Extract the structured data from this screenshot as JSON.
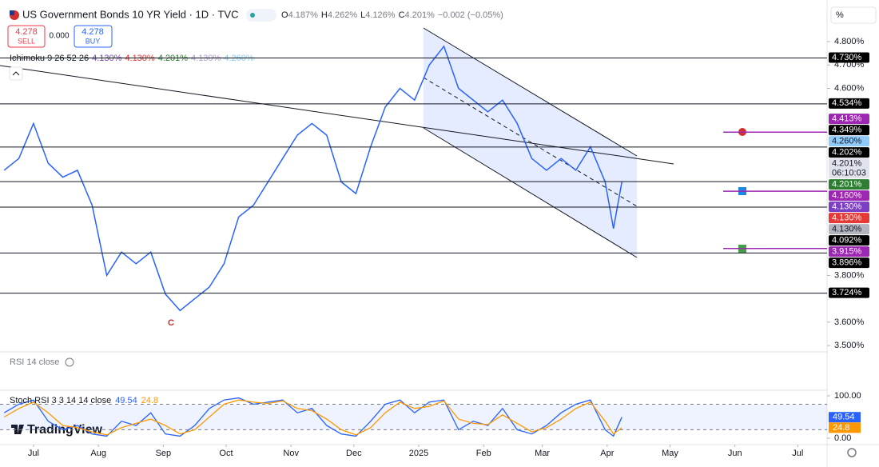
{
  "header": {
    "ohlc": [
      {
        "key": "O",
        "value": "4.187%"
      },
      {
        "key": "H",
        "value": "4.262%"
      },
      {
        "key": "L",
        "value": "4.126%"
      },
      {
        "key": "C",
        "value": "4.201%"
      }
    ],
    "change": "−0.002 (−0.05%)"
  },
  "trade": {
    "sell_price": "4.278",
    "sell": "SELL",
    "spread": "0.000",
    "buy_price": "4.278",
    "buy": "BUY"
  },
  "indicator": {
    "name": "Ichimoku 9 26 52 26",
    "values": [
      {
        "text": "4.130%",
        "color": "#7b3fc4"
      },
      {
        "text": "4.130%",
        "color": "#e53935"
      },
      {
        "text": "4.201%",
        "color": "#2e7d32"
      },
      {
        "text": "4.130%",
        "color": "#b39ddb"
      },
      {
        "text": "4.260%",
        "color": "#90caf9"
      }
    ]
  },
  "axis_unit": "%",
  "annotation": "C",
  "rsi_title": "RSI 14 close",
  "logo": "TradingView",
  "price_labels": [
    {
      "value": 4.73,
      "label": "4.730%",
      "bg": "#000000",
      "fg": "#ffffff",
      "line": "full"
    },
    {
      "value": 4.534,
      "label": "4.534%",
      "bg": "#000000",
      "fg": "#ffffff",
      "line": "full"
    },
    {
      "value": 4.413,
      "label": "4.413%",
      "bg": "#9c27b0",
      "fg": "#ffffff",
      "line": "short"
    },
    {
      "value": 4.349,
      "label": "4.349%",
      "bg": "#000000",
      "fg": "#ffffff",
      "line": "full"
    },
    {
      "value": 4.26,
      "label": "4.260%",
      "bg": "#90caf9",
      "fg": "#131722"
    },
    {
      "value": 4.202,
      "label": "4.202%",
      "bg": "#000000",
      "fg": "#ffffff"
    },
    {
      "value": 4.201,
      "label": "4.201%",
      "countdown": "06:10:03",
      "bg": "#e0e3eb",
      "fg": "#131722"
    },
    {
      "value": 4.201,
      "label": "4.201%",
      "bg": "#2e7d32",
      "fg": "#ffffff",
      "line": "full"
    },
    {
      "value": 4.16,
      "label": "4.160%",
      "bg": "#9c27b0",
      "fg": "#ffffff",
      "line": "short"
    },
    {
      "value": 4.13,
      "label": "4.130%",
      "bg": "#7b3fc4",
      "fg": "#ffffff"
    },
    {
      "value": 4.13,
      "label": "4.130%",
      "bg": "#e53935",
      "fg": "#ffffff"
    },
    {
      "value": 4.13,
      "label": "4.130%",
      "bg": "#b2b5be",
      "fg": "#131722"
    },
    {
      "value": 4.092,
      "label": "4.092%",
      "bg": "#000000",
      "fg": "#ffffff",
      "line": "full"
    },
    {
      "value": 3.915,
      "label": "3.915%",
      "bg": "#9c27b0",
      "fg": "#ffffff",
      "line": "short"
    },
    {
      "value": 3.896,
      "label": "3.896%",
      "bg": "#000000",
      "fg": "#ffffff",
      "line": "full"
    },
    {
      "value": 3.724,
      "label": "3.724%",
      "bg": "#000000",
      "fg": "#ffffff",
      "line": "full"
    }
  ],
  "chart_data": [
    {
      "type": "line",
      "title": "US Government Bonds 10 YR Yield · 1D · TVC",
      "color": "#2962ff",
      "x": [
        "2024-06-17",
        "2024-06-24",
        "2024-07-01",
        "2024-07-08",
        "2024-07-15",
        "2024-07-22",
        "2024-07-29",
        "2024-08-05",
        "2024-08-12",
        "2024-08-19",
        "2024-08-26",
        "2024-09-02",
        "2024-09-09",
        "2024-09-16",
        "2024-09-23",
        "2024-09-30",
        "2024-10-07",
        "2024-10-14",
        "2024-10-21",
        "2024-10-28",
        "2024-11-04",
        "2024-11-11",
        "2024-11-18",
        "2024-11-25",
        "2024-12-02",
        "2024-12-09",
        "2024-12-16",
        "2024-12-23",
        "2024-12-30",
        "2025-01-06",
        "2025-01-13",
        "2025-01-20",
        "2025-01-27",
        "2025-02-03",
        "2025-02-10",
        "2025-02-17",
        "2025-02-24",
        "2025-03-03",
        "2025-03-10",
        "2025-03-17",
        "2025-03-24",
        "2025-03-31",
        "2025-04-04",
        "2025-04-08"
      ],
      "values": [
        4.25,
        4.3,
        4.45,
        4.28,
        4.22,
        4.25,
        4.1,
        3.8,
        3.9,
        3.85,
        3.9,
        3.72,
        3.65,
        3.7,
        3.75,
        3.85,
        4.05,
        4.1,
        4.2,
        4.3,
        4.4,
        4.45,
        4.4,
        4.2,
        4.15,
        4.35,
        4.52,
        4.6,
        4.55,
        4.7,
        4.78,
        4.6,
        4.55,
        4.5,
        4.55,
        4.45,
        4.3,
        4.25,
        4.3,
        4.25,
        4.35,
        4.2,
        4.0,
        4.2
      ],
      "xlim": [
        "2024-06-15",
        "2025-07-15"
      ],
      "xticks": [
        {
          "value": "2024-07-01",
          "label": "Jul"
        },
        {
          "value": "2024-08-01",
          "label": "Aug"
        },
        {
          "value": "2024-09-01",
          "label": "Sep"
        },
        {
          "value": "2024-10-01",
          "label": "Oct"
        },
        {
          "value": "2024-11-01",
          "label": "Nov"
        },
        {
          "value": "2024-12-01",
          "label": "Dec"
        },
        {
          "value": "2025-01-01",
          "label": "2025"
        },
        {
          "value": "2025-02-01",
          "label": "Feb"
        },
        {
          "value": "2025-03-01",
          "label": "Mar"
        },
        {
          "value": "2025-04-01",
          "label": "Apr"
        },
        {
          "value": "2025-05-01",
          "label": "May"
        },
        {
          "value": "2025-06-01",
          "label": "Jun"
        },
        {
          "value": "2025-07-01",
          "label": "Jul"
        }
      ],
      "ylim": [
        3.473,
        4.961
      ],
      "yticks": [
        {
          "value": 4.8,
          "label": "4.800%"
        },
        {
          "value": 4.7,
          "label": "4.700%"
        },
        {
          "value": 4.6,
          "label": "4.600%"
        },
        {
          "value": 3.8,
          "label": "3.800%"
        },
        {
          "value": 3.6,
          "label": "3.600%"
        },
        {
          "value": 3.5,
          "label": "3.500%"
        }
      ]
    },
    {
      "type": "line",
      "title": "Stoch RSI 3 3 14 14 close",
      "x": [
        "2024-06-17",
        "2024-06-24",
        "2024-07-01",
        "2024-07-08",
        "2024-07-15",
        "2024-07-22",
        "2024-07-29",
        "2024-08-05",
        "2024-08-12",
        "2024-08-19",
        "2024-08-26",
        "2024-09-02",
        "2024-09-09",
        "2024-09-16",
        "2024-09-23",
        "2024-09-30",
        "2024-10-07",
        "2024-10-14",
        "2024-10-21",
        "2024-10-28",
        "2024-11-04",
        "2024-11-11",
        "2024-11-18",
        "2024-11-25",
        "2024-12-02",
        "2024-12-09",
        "2024-12-16",
        "2024-12-23",
        "2024-12-30",
        "2025-01-06",
        "2025-01-13",
        "2025-01-20",
        "2025-01-27",
        "2025-02-03",
        "2025-02-10",
        "2025-02-17",
        "2025-02-24",
        "2025-03-03",
        "2025-03-10",
        "2025-03-17",
        "2025-03-24",
        "2025-03-31",
        "2025-04-04",
        "2025-04-08"
      ],
      "series": [
        {
          "color": "#2962ff",
          "values": [
            60,
            80,
            90,
            40,
            20,
            30,
            10,
            5,
            40,
            30,
            60,
            10,
            5,
            30,
            70,
            90,
            95,
            80,
            85,
            90,
            60,
            70,
            30,
            10,
            5,
            40,
            80,
            90,
            60,
            85,
            90,
            20,
            40,
            30,
            70,
            20,
            10,
            30,
            60,
            80,
            90,
            20,
            5,
            49.54
          ]
        },
        {
          "color": "#ff9800",
          "values": [
            50,
            70,
            85,
            60,
            30,
            25,
            15,
            8,
            25,
            35,
            45,
            30,
            10,
            20,
            50,
            80,
            90,
            85,
            82,
            88,
            70,
            65,
            45,
            20,
            8,
            25,
            60,
            85,
            70,
            75,
            88,
            45,
            35,
            32,
            55,
            35,
            15,
            25,
            45,
            70,
            85,
            40,
            10,
            24.8
          ]
        }
      ],
      "band": [
        20,
        80
      ],
      "xlim": [
        "2024-06-15",
        "2025-07-15"
      ],
      "ylim": [
        -15,
        113
      ],
      "yticks": [
        {
          "value": 100,
          "label": "100.00"
        },
        {
          "value": 0,
          "label": "0.00"
        }
      ]
    }
  ]
}
